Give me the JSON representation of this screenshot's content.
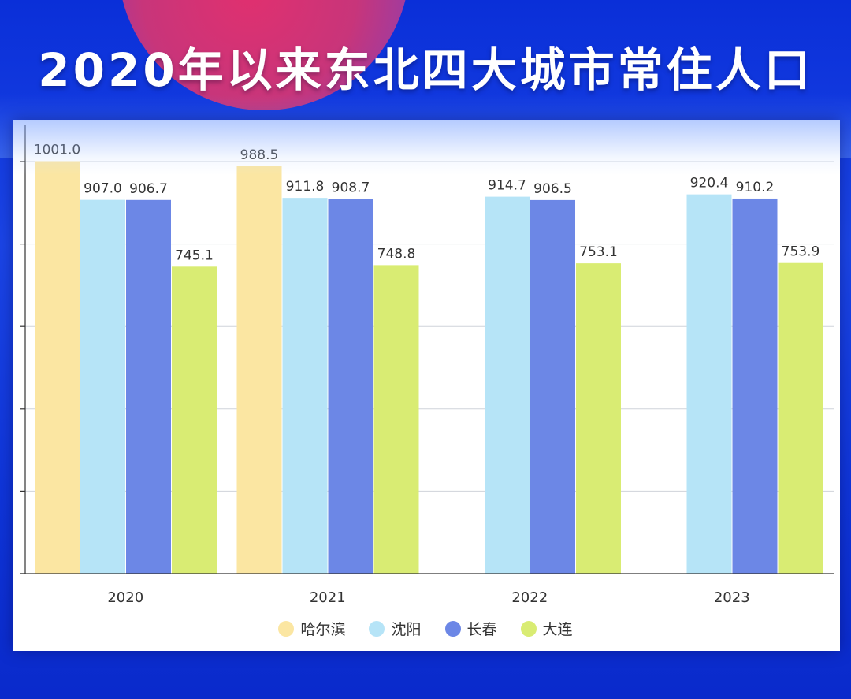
{
  "title": "2020年以来东北四大城市常住人口",
  "chart_data": {
    "type": "bar",
    "categories": [
      "2020",
      "2021",
      "2022",
      "2023"
    ],
    "series": [
      {
        "name": "哈尔滨",
        "color": "#fbe6a2",
        "values": [
          1001.0,
          988.5,
          null,
          null
        ]
      },
      {
        "name": "沈阳",
        "color": "#b6e4f7",
        "values": [
          907.0,
          911.8,
          914.7,
          920.4
        ]
      },
      {
        "name": "长春",
        "color": "#6c87e6",
        "values": [
          906.7,
          908.7,
          906.5,
          910.2
        ]
      },
      {
        "name": "大连",
        "color": "#d9ec73",
        "values": [
          745.1,
          748.8,
          753.1,
          753.9
        ]
      }
    ],
    "data_labels": [
      [
        "1001.0",
        "907.0",
        "906.7",
        "745.1"
      ],
      [
        "988.5",
        "911.8",
        "908.7",
        "748.8"
      ],
      [
        "",
        "914.7",
        "906.5",
        "753.1"
      ],
      [
        "",
        "920.4",
        "910.2",
        "753.9"
      ]
    ],
    "ylim": [
      0,
      1000
    ],
    "grid": true,
    "legend": "bottom",
    "xlabel": "",
    "ylabel": ""
  }
}
